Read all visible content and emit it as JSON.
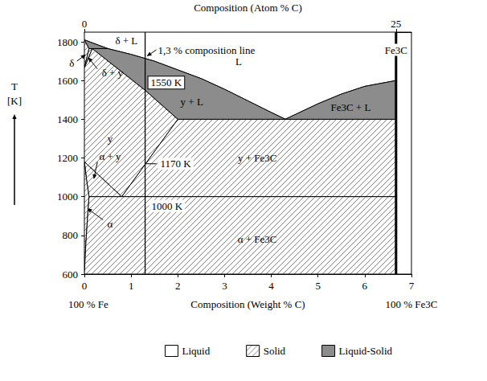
{
  "chart_data": {
    "type": "phase",
    "x2label": "Composition (Atom % C)",
    "xlabel": "Composition (Weight % C)",
    "ylabel": "T\n[K]",
    "xlim": [
      0,
      7
    ],
    "xticks": [
      0,
      1,
      2,
      3,
      4,
      5,
      6,
      7
    ],
    "x2lim": [
      0,
      26.24
    ],
    "x2ticks": [
      0,
      25
    ],
    "ylim": [
      600,
      1850
    ],
    "yticks": [
      600,
      800,
      1000,
      1200,
      1400,
      1600,
      1800
    ],
    "grid": false,
    "legend": "bottom",
    "x_end_labels": [
      "100 % Fe",
      "100 % Fe3C"
    ],
    "lines": [
      {
        "label": "1,3 % composition line",
        "x": 1.3,
        "line_style": "solid"
      },
      {
        "label": "Fe3C",
        "x": 6.67,
        "line_style": "bold"
      }
    ],
    "annotations": [
      {
        "text": "1550 K",
        "x": 1.3,
        "y": 1550
      },
      {
        "text": "1170 K",
        "x": 1.3,
        "y": 1170
      },
      {
        "text": "1000 K",
        "x": 1.3,
        "y": 1000
      }
    ],
    "series": [
      {
        "name": "Liquid",
        "color": "#ffffff",
        "marker": "solid",
        "regions": [
          {
            "label": "L",
            "points": [
              [
                0,
                1810
              ],
              [
                0.5,
                1765
              ],
              [
                1.0,
                1735
              ],
              [
                1.5,
                1700
              ],
              [
                2.0,
                1655
              ],
              [
                2.5,
                1610
              ],
              [
                3.0,
                1555
              ],
              [
                3.5,
                1495
              ],
              [
                4.0,
                1435
              ],
              [
                4.3,
                1400
              ],
              [
                5.0,
                1480
              ],
              [
                5.5,
                1530
              ],
              [
                6.0,
                1570
              ],
              [
                6.67,
                1600
              ],
              [
                6.67,
                1850
              ],
              [
                0,
                1850
              ]
            ]
          }
        ]
      },
      {
        "name": "Solid",
        "color": "#7f7f7f",
        "marker": "hatch",
        "regions": [
          {
            "label": "δ",
            "points": [
              [
                0,
                1810
              ],
              [
                0.1,
                1765
              ],
              [
                0,
                1665
              ]
            ]
          },
          {
            "label": "δ + y",
            "points": [
              [
                0.1,
                1765
              ],
              [
                0.17,
                1765
              ],
              [
                0,
                1665
              ]
            ]
          },
          {
            "label": "y",
            "points": [
              [
                0,
                1180
              ],
              [
                0,
                1665
              ],
              [
                0.17,
                1765
              ],
              [
                1.3,
                1550
              ],
              [
                2.0,
                1400
              ],
              [
                0.8,
                1000
              ]
            ]
          },
          {
            "label": "α + y",
            "points": [
              [
                0,
                1180
              ],
              [
                0.8,
                1000
              ],
              [
                0.1,
                1000
              ],
              [
                0.05,
                1080
              ],
              [
                0.02,
                1140
              ]
            ]
          },
          {
            "label": "y + Fe3C",
            "points": [
              [
                0.8,
                1000
              ],
              [
                2.0,
                1400
              ],
              [
                6.67,
                1400
              ],
              [
                6.67,
                1000
              ]
            ]
          },
          {
            "label": "α",
            "points": [
              [
                0,
                1180
              ],
              [
                0.02,
                1140
              ],
              [
                0.05,
                1080
              ],
              [
                0.1,
                1000
              ],
              [
                0.07,
                900
              ],
              [
                0.03,
                750
              ],
              [
                0,
                600
              ]
            ]
          },
          {
            "label": "α + Fe3C",
            "points": [
              [
                0.1,
                1000
              ],
              [
                6.67,
                1000
              ],
              [
                6.67,
                600
              ],
              [
                0,
                600
              ],
              [
                0.03,
                750
              ],
              [
                0.07,
                900
              ]
            ]
          }
        ]
      },
      {
        "name": "Liquid-Solid",
        "color": "#8c8c8c",
        "marker": "solid",
        "regions": [
          {
            "label": "δ + L",
            "points": [
              [
                0,
                1810
              ],
              [
                0.5,
                1765
              ],
              [
                0.1,
                1765
              ]
            ]
          },
          {
            "label": "y + L",
            "points": [
              [
                0.17,
                1765
              ],
              [
                0.5,
                1765
              ],
              [
                1.0,
                1735
              ],
              [
                1.5,
                1700
              ],
              [
                2.0,
                1655
              ],
              [
                2.5,
                1610
              ],
              [
                3.0,
                1555
              ],
              [
                3.5,
                1495
              ],
              [
                4.0,
                1435
              ],
              [
                4.3,
                1400
              ],
              [
                2.0,
                1400
              ],
              [
                1.3,
                1550
              ]
            ]
          },
          {
            "label": "Fe3C + L",
            "points": [
              [
                4.3,
                1400
              ],
              [
                5.0,
                1480
              ],
              [
                5.5,
                1530
              ],
              [
                6.0,
                1570
              ],
              [
                6.67,
                1600
              ],
              [
                6.67,
                1400
              ]
            ]
          }
        ]
      }
    ]
  }
}
